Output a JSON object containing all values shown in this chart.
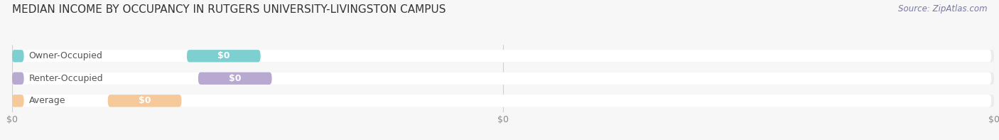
{
  "title": "MEDIAN INCOME BY OCCUPANCY IN RUTGERS UNIVERSITY-LIVINGSTON CAMPUS",
  "source_text": "Source: ZipAtlas.com",
  "categories": [
    "Owner-Occupied",
    "Renter-Occupied",
    "Average"
  ],
  "values": [
    0,
    0,
    0
  ],
  "bar_colors": [
    "#7ecfcf",
    "#b8a9d0",
    "#f5c99a"
  ],
  "label_values": [
    "$0",
    "$0",
    "$0"
  ],
  "x_tick_labels": [
    "$0",
    "$0",
    "$0"
  ],
  "x_tick_positions": [
    0,
    50,
    100
  ],
  "background_color": "#f7f7f7",
  "bar_bg_color": "#ebebeb",
  "bar_white_color": "#ffffff",
  "title_fontsize": 11,
  "source_fontsize": 8.5,
  "cat_fontsize": 9,
  "val_fontsize": 9,
  "tick_fontsize": 9,
  "figsize": [
    14.06,
    1.97
  ],
  "dpi": 100
}
